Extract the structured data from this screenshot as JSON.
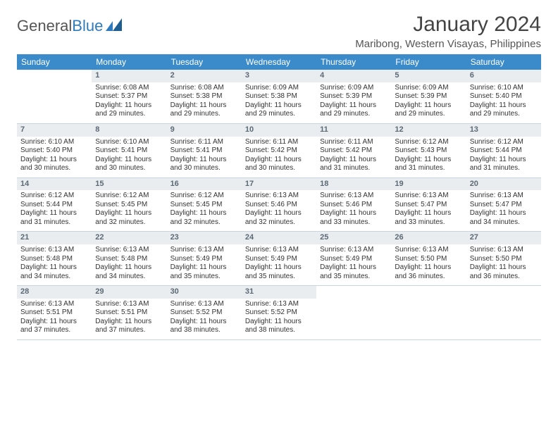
{
  "logo": {
    "text1": "General",
    "text2": "Blue"
  },
  "title": "January 2024",
  "subtitle": "Maribong, Western Visayas, Philippines",
  "colors": {
    "header_bg": "#3b8bca",
    "header_text": "#ffffff",
    "daynum_bg": "#e9edf0",
    "daynum_text": "#5c6a75",
    "border": "#c8d4dd",
    "logo_gray": "#555555",
    "logo_blue": "#2f7bbf"
  },
  "columns": [
    "Sunday",
    "Monday",
    "Tuesday",
    "Wednesday",
    "Thursday",
    "Friday",
    "Saturday"
  ],
  "weeks": [
    [
      {
        "blank": true
      },
      {
        "n": "1",
        "sr": "6:08 AM",
        "ss": "5:37 PM",
        "dl": "11 hours and 29 minutes."
      },
      {
        "n": "2",
        "sr": "6:08 AM",
        "ss": "5:38 PM",
        "dl": "11 hours and 29 minutes."
      },
      {
        "n": "3",
        "sr": "6:09 AM",
        "ss": "5:38 PM",
        "dl": "11 hours and 29 minutes."
      },
      {
        "n": "4",
        "sr": "6:09 AM",
        "ss": "5:39 PM",
        "dl": "11 hours and 29 minutes."
      },
      {
        "n": "5",
        "sr": "6:09 AM",
        "ss": "5:39 PM",
        "dl": "11 hours and 29 minutes."
      },
      {
        "n": "6",
        "sr": "6:10 AM",
        "ss": "5:40 PM",
        "dl": "11 hours and 29 minutes."
      }
    ],
    [
      {
        "n": "7",
        "sr": "6:10 AM",
        "ss": "5:40 PM",
        "dl": "11 hours and 30 minutes."
      },
      {
        "n": "8",
        "sr": "6:10 AM",
        "ss": "5:41 PM",
        "dl": "11 hours and 30 minutes."
      },
      {
        "n": "9",
        "sr": "6:11 AM",
        "ss": "5:41 PM",
        "dl": "11 hours and 30 minutes."
      },
      {
        "n": "10",
        "sr": "6:11 AM",
        "ss": "5:42 PM",
        "dl": "11 hours and 30 minutes."
      },
      {
        "n": "11",
        "sr": "6:11 AM",
        "ss": "5:42 PM",
        "dl": "11 hours and 31 minutes."
      },
      {
        "n": "12",
        "sr": "6:12 AM",
        "ss": "5:43 PM",
        "dl": "11 hours and 31 minutes."
      },
      {
        "n": "13",
        "sr": "6:12 AM",
        "ss": "5:44 PM",
        "dl": "11 hours and 31 minutes."
      }
    ],
    [
      {
        "n": "14",
        "sr": "6:12 AM",
        "ss": "5:44 PM",
        "dl": "11 hours and 31 minutes."
      },
      {
        "n": "15",
        "sr": "6:12 AM",
        "ss": "5:45 PM",
        "dl": "11 hours and 32 minutes."
      },
      {
        "n": "16",
        "sr": "6:12 AM",
        "ss": "5:45 PM",
        "dl": "11 hours and 32 minutes."
      },
      {
        "n": "17",
        "sr": "6:13 AM",
        "ss": "5:46 PM",
        "dl": "11 hours and 32 minutes."
      },
      {
        "n": "18",
        "sr": "6:13 AM",
        "ss": "5:46 PM",
        "dl": "11 hours and 33 minutes."
      },
      {
        "n": "19",
        "sr": "6:13 AM",
        "ss": "5:47 PM",
        "dl": "11 hours and 33 minutes."
      },
      {
        "n": "20",
        "sr": "6:13 AM",
        "ss": "5:47 PM",
        "dl": "11 hours and 34 minutes."
      }
    ],
    [
      {
        "n": "21",
        "sr": "6:13 AM",
        "ss": "5:48 PM",
        "dl": "11 hours and 34 minutes."
      },
      {
        "n": "22",
        "sr": "6:13 AM",
        "ss": "5:48 PM",
        "dl": "11 hours and 34 minutes."
      },
      {
        "n": "23",
        "sr": "6:13 AM",
        "ss": "5:49 PM",
        "dl": "11 hours and 35 minutes."
      },
      {
        "n": "24",
        "sr": "6:13 AM",
        "ss": "5:49 PM",
        "dl": "11 hours and 35 minutes."
      },
      {
        "n": "25",
        "sr": "6:13 AM",
        "ss": "5:49 PM",
        "dl": "11 hours and 35 minutes."
      },
      {
        "n": "26",
        "sr": "6:13 AM",
        "ss": "5:50 PM",
        "dl": "11 hours and 36 minutes."
      },
      {
        "n": "27",
        "sr": "6:13 AM",
        "ss": "5:50 PM",
        "dl": "11 hours and 36 minutes."
      }
    ],
    [
      {
        "n": "28",
        "sr": "6:13 AM",
        "ss": "5:51 PM",
        "dl": "11 hours and 37 minutes."
      },
      {
        "n": "29",
        "sr": "6:13 AM",
        "ss": "5:51 PM",
        "dl": "11 hours and 37 minutes."
      },
      {
        "n": "30",
        "sr": "6:13 AM",
        "ss": "5:52 PM",
        "dl": "11 hours and 38 minutes."
      },
      {
        "n": "31",
        "sr": "6:13 AM",
        "ss": "5:52 PM",
        "dl": "11 hours and 38 minutes."
      },
      {
        "blank": true
      },
      {
        "blank": true
      },
      {
        "blank": true
      }
    ]
  ],
  "labels": {
    "sunrise": "Sunrise:",
    "sunset": "Sunset:",
    "daylight": "Daylight:"
  }
}
